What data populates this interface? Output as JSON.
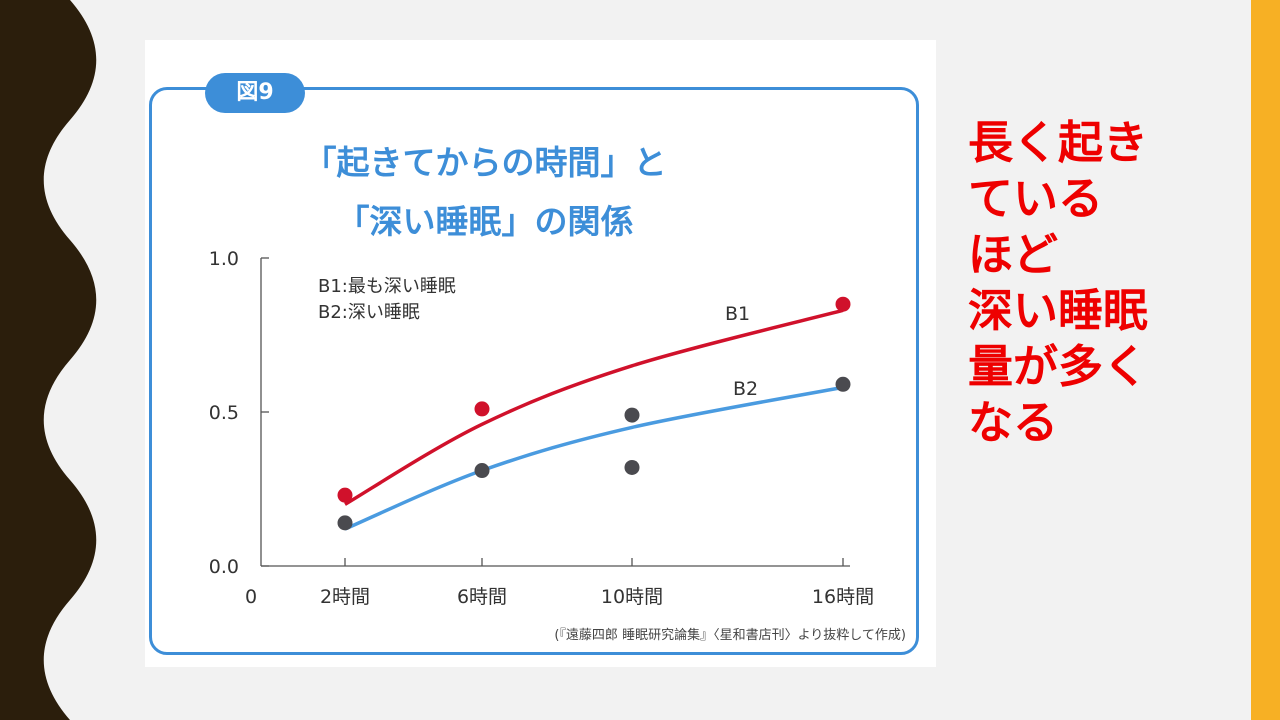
{
  "figure_label": "図9",
  "title_lines": [
    "「起きてからの時間」と",
    "「深い睡眠」の関係"
  ],
  "source": "(『遠藤四郎 睡眠研究論集』〈星和書店刊〉より抜粋して作成)",
  "callout_lines": [
    "長く起き",
    "ている",
    "ほど",
    "深い睡眠",
    "量が多く",
    "なる"
  ],
  "colors": {
    "b1": "#d0112b",
    "b2": "#4a9be0",
    "point_b2": "#4a4a4f",
    "accent_frame": "#3d8ed8",
    "callout": "#ee0000",
    "side_bar": "#f7b024",
    "left_deco": "#2b1e0c"
  },
  "chart_data": {
    "type": "scatter",
    "x_origin_label": "0",
    "categories": [
      "2時間",
      "6時間",
      "10時間",
      "16時間"
    ],
    "y_ticks": [
      "0.0",
      "0.5",
      "1.0"
    ],
    "ylim": [
      0,
      1.0
    ],
    "legend": [
      "B1:最も深い睡眠",
      "B2:深い睡眠"
    ],
    "series": [
      {
        "name": "B1",
        "points": [
          {
            "x": "2時間",
            "y": 0.23
          },
          {
            "x": "6時間",
            "y": 0.51
          }
        ],
        "curve": [
          {
            "x": "2時間",
            "y": 0.2
          },
          {
            "x": "6時間",
            "y": 0.46
          },
          {
            "x": "10時間",
            "y": 0.65
          },
          {
            "x": "16時間",
            "y": 0.83
          }
        ],
        "end_point": {
          "x": "16時間",
          "y": 0.85
        }
      },
      {
        "name": "B2",
        "points": [
          {
            "x": "2時間",
            "y": 0.14
          },
          {
            "x": "6時間",
            "y": 0.31
          },
          {
            "x": "10時間",
            "y": 0.49
          },
          {
            "x": "10時間",
            "y": 0.32
          },
          {
            "x": "16時間",
            "y": 0.59
          }
        ],
        "curve": [
          {
            "x": "2時間",
            "y": 0.12
          },
          {
            "x": "6時間",
            "y": 0.31
          },
          {
            "x": "10時間",
            "y": 0.45
          },
          {
            "x": "16時間",
            "y": 0.58
          }
        ]
      }
    ]
  }
}
